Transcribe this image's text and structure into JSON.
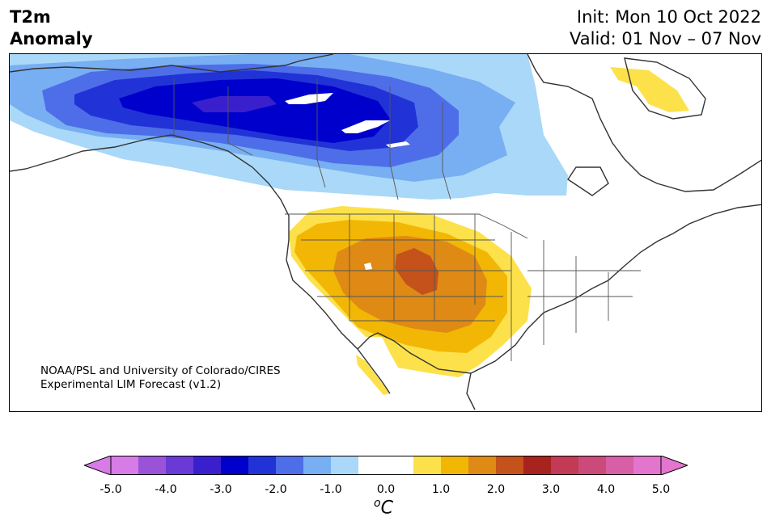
{
  "title": {
    "line1": "T2m",
    "line2": "Anomaly"
  },
  "dates": {
    "init": "Init: Mon 10 Oct 2022",
    "valid": "Valid: 01 Nov – 07 Nov"
  },
  "credit": {
    "line1": "NOAA/PSL and University of Colorado/CIRES",
    "line2": "Experimental LIM Forecast (v1.2)"
  },
  "colorbar": {
    "unit_sup": "o",
    "unit_main": "C",
    "ticks": [
      "-5.0",
      "-4.0",
      "-3.0",
      "-2.0",
      "-1.0",
      "0.0",
      "1.0",
      "2.0",
      "3.0",
      "4.0",
      "5.0"
    ],
    "colors": [
      "#d77be6",
      "#9a52d9",
      "#6a3ad6",
      "#3a1fcc",
      "#0000cc",
      "#2133d6",
      "#4d6ee8",
      "#78aef2",
      "#aad8f8",
      "#ffffff",
      "#ffffff",
      "#fde14a",
      "#f2b705",
      "#df8a14",
      "#c4521a",
      "#a8231e",
      "#c23a55",
      "#cc4a7a",
      "#d75fa5",
      "#e475cf"
    ],
    "under_color": "#d77be6",
    "over_color": "#e475cf"
  },
  "map": {
    "region": "North America",
    "variable": "2m temperature anomaly",
    "features": {
      "cold_anomaly": "Alaska, northwest Canada and Canadian Prairies",
      "warm_anomaly": "Western and central United States, Mexico",
      "warm_anomaly_north": "Baffin Island"
    }
  }
}
